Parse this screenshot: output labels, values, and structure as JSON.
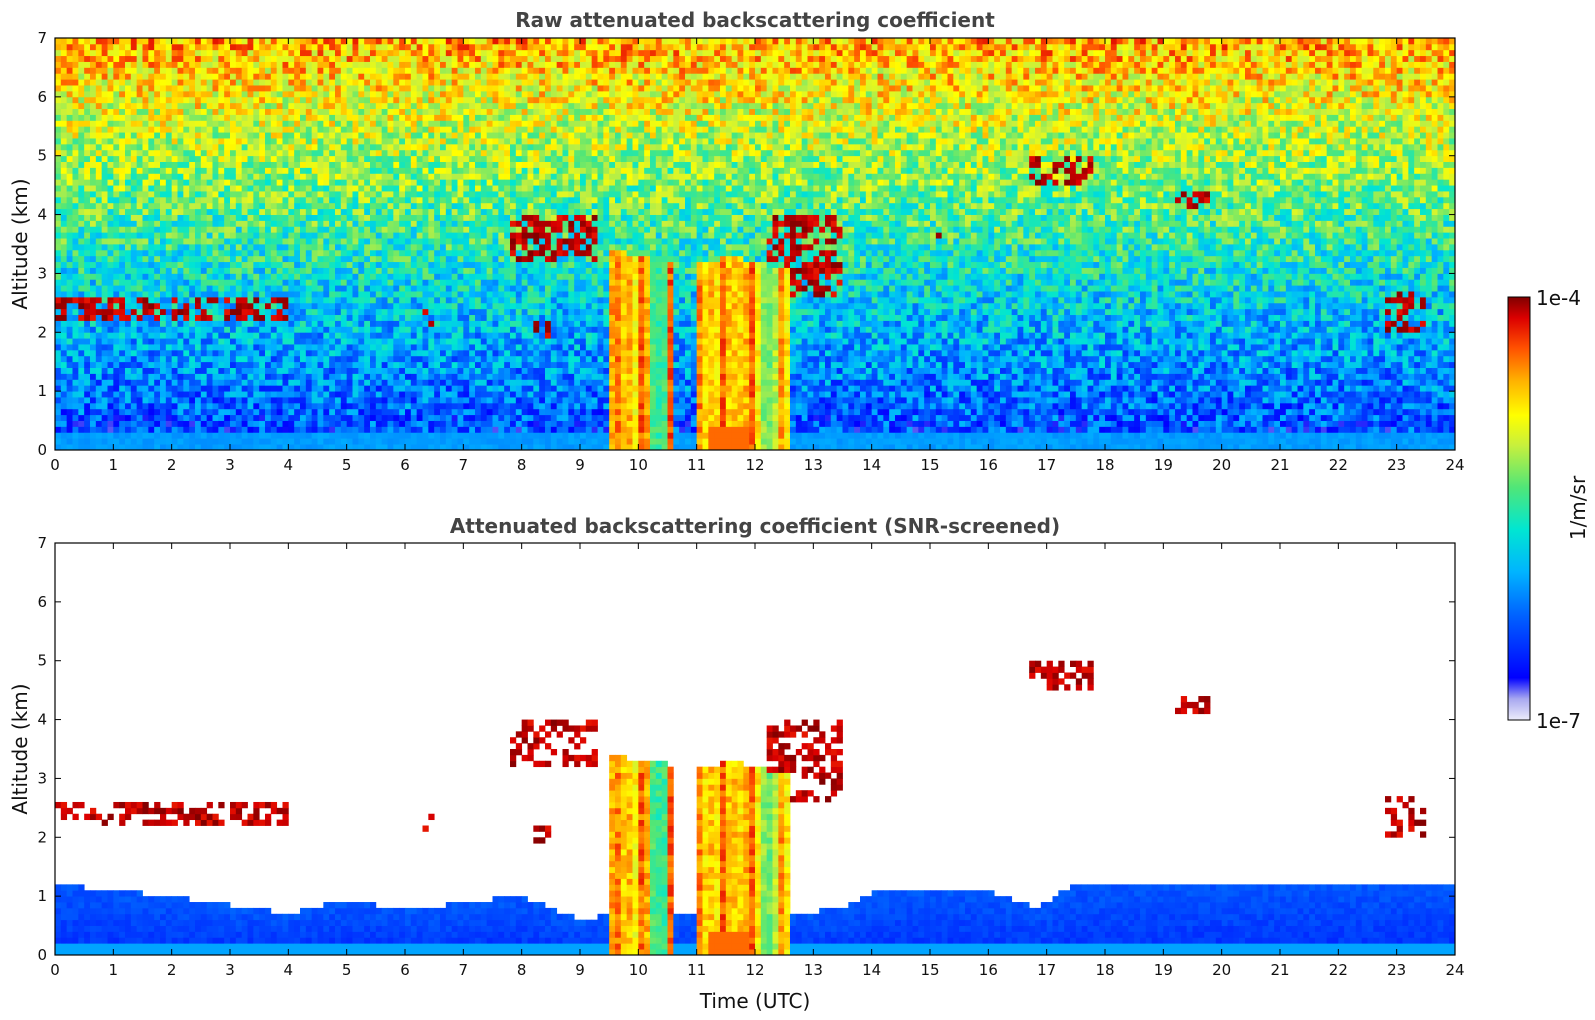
{
  "chart_data": [
    {
      "type": "heatmap",
      "title": "Raw attenuated backscattering coefficient",
      "xlabel": "",
      "ylabel": "Altitude (km)",
      "xlim": [
        0,
        24
      ],
      "ylim": [
        0,
        7
      ],
      "x_ticks": [
        "0",
        "1",
        "2",
        "3",
        "4",
        "5",
        "6",
        "7",
        "8",
        "9",
        "10",
        "11",
        "12",
        "13",
        "14",
        "15",
        "16",
        "17",
        "18",
        "19",
        "20",
        "21",
        "22",
        "23",
        "24"
      ],
      "y_ticks": [
        "0",
        "1",
        "2",
        "3",
        "4",
        "5",
        "6",
        "7"
      ],
      "screened": false,
      "cloud_features": [
        {
          "time_start": 0.0,
          "time_end": 4.0,
          "alt_bottom": 2.25,
          "alt_top": 2.6,
          "level": "high"
        },
        {
          "time_start": 6.3,
          "time_end": 6.45,
          "alt_bottom": 2.1,
          "alt_top": 2.4,
          "level": "high"
        },
        {
          "time_start": 7.8,
          "time_end": 9.3,
          "alt_bottom": 3.2,
          "alt_top": 4.0,
          "level": "high"
        },
        {
          "time_start": 8.2,
          "time_end": 8.5,
          "alt_bottom": 1.9,
          "alt_top": 2.2,
          "level": "high"
        },
        {
          "time_start": 9.5,
          "time_end": 10.6,
          "alt_bottom": 0.0,
          "alt_top": 3.4,
          "level": "mid-high"
        },
        {
          "time_start": 11.0,
          "time_end": 12.6,
          "alt_bottom": 0.0,
          "alt_top": 3.3,
          "level": "mid-high"
        },
        {
          "time_start": 12.2,
          "time_end": 13.5,
          "alt_bottom": 2.6,
          "alt_top": 4.0,
          "level": "high"
        },
        {
          "time_start": 15.0,
          "time_end": 15.2,
          "alt_bottom": 3.6,
          "alt_top": 3.7,
          "level": "high"
        },
        {
          "time_start": 16.7,
          "time_end": 17.8,
          "alt_bottom": 4.5,
          "alt_top": 5.0,
          "level": "high"
        },
        {
          "time_start": 19.2,
          "time_end": 19.8,
          "alt_bottom": 4.15,
          "alt_top": 4.4,
          "level": "high"
        },
        {
          "time_start": 22.8,
          "time_end": 23.5,
          "alt_bottom": 2.0,
          "alt_top": 2.7,
          "level": "high"
        }
      ]
    },
    {
      "type": "heatmap",
      "title": "Attenuated backscattering coefficient (SNR-screened)",
      "xlabel": "Time (UTC)",
      "ylabel": "Altitude (km)",
      "xlim": [
        0,
        24
      ],
      "ylim": [
        0,
        7
      ],
      "x_ticks": [
        "0",
        "1",
        "2",
        "3",
        "4",
        "5",
        "6",
        "7",
        "8",
        "9",
        "10",
        "11",
        "12",
        "13",
        "14",
        "15",
        "16",
        "17",
        "18",
        "19",
        "20",
        "21",
        "22",
        "23",
        "24"
      ],
      "y_ticks": [
        "0",
        "1",
        "2",
        "3",
        "4",
        "5",
        "6",
        "7"
      ],
      "screened": true,
      "boundary_layer_top_km": [
        [
          0,
          1.2
        ],
        [
          2,
          1.0
        ],
        [
          4,
          0.7
        ],
        [
          5,
          0.95
        ],
        [
          6,
          0.75
        ],
        [
          7,
          0.9
        ],
        [
          8,
          1.0
        ],
        [
          9,
          0.6
        ],
        [
          9.5,
          0.7
        ],
        [
          12.7,
          0.7
        ],
        [
          13.5,
          0.8
        ],
        [
          14,
          1.05
        ],
        [
          16,
          1.1
        ],
        [
          16.8,
          0.8
        ],
        [
          17.5,
          1.2
        ],
        [
          24,
          1.2
        ]
      ]
    }
  ],
  "colorbar": {
    "max_label": "1e-4",
    "min_label": "1e-7",
    "unit_label": "1/m/sr",
    "colors": [
      "#e8e8f8",
      "#b8b8f0",
      "#8080ff",
      "#0000ff",
      "#0064ff",
      "#00b4ff",
      "#00e6e6",
      "#00dc96",
      "#64e664",
      "#c8f03c",
      "#ffff00",
      "#ffc800",
      "#ff8c00",
      "#ff4600",
      "#dc0000",
      "#8b0000"
    ]
  }
}
